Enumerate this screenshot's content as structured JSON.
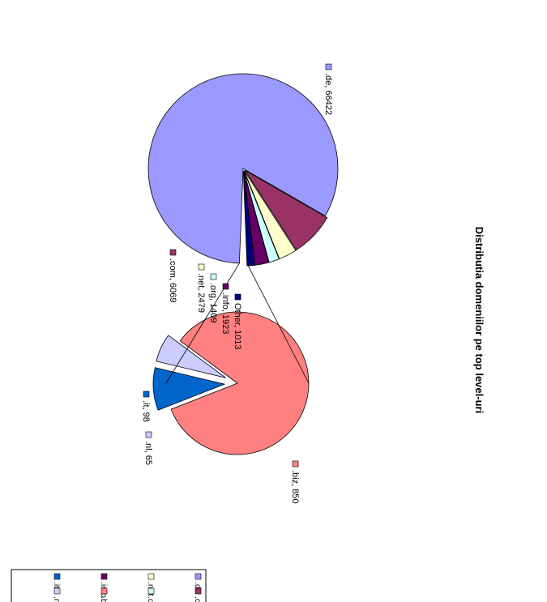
{
  "chart_data": {
    "type": "pie",
    "subtype": "bar-of-pie (pie of pie), rotated 90 degrees clockwise",
    "title": "Distributia domeniilor pe top level-uri",
    "main_pie": {
      "slices": [
        {
          "name": "de",
          "value": 66422,
          "label": ".de, 66422",
          "color": "#9999ff"
        },
        {
          "name": "com",
          "value": 6069,
          "label": ".com, 6069",
          "color": "#993366"
        },
        {
          "name": "net",
          "value": 2479,
          "label": ".net, 2479",
          "color": "#ffffcc"
        },
        {
          "name": "org",
          "value": 1409,
          "label": ".org, 1409",
          "color": "#ccffff"
        },
        {
          "name": "info",
          "value": 1923,
          "label": ".info, 1923",
          "color": "#660066"
        },
        {
          "name": "Other",
          "value": 1013,
          "label": "Other, 1013",
          "color": "#000080"
        }
      ]
    },
    "secondary_pie": {
      "slices": [
        {
          "name": "biz",
          "value": 850,
          "label": ".biz, 850",
          "color": "#ff8080"
        },
        {
          "name": "it",
          "value": 98,
          "label": ".it, 98",
          "color": "#0066cc"
        },
        {
          "name": "nl",
          "value": 65,
          "label": ".nl, 65",
          "color": "#ccccff"
        }
      ]
    },
    "legend": {
      "placement": "bottom-left",
      "entries": [
        {
          "label": ".de",
          "color": "#9999ff"
        },
        {
          "label": ".com",
          "color": "#993366"
        },
        {
          "label": ".net",
          "color": "#ffffcc"
        },
        {
          "label": ".org",
          "color": "#ccffff"
        },
        {
          "label": ".info",
          "color": "#660066"
        },
        {
          "label": ".biz",
          "color": "#ff8080"
        },
        {
          "label": ".it",
          "color": "#0066cc"
        },
        {
          "label": ".nl",
          "color": "#ccccff"
        }
      ]
    }
  }
}
